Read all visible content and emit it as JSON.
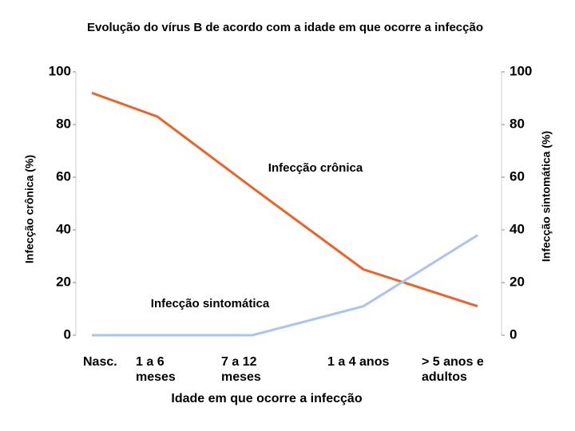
{
  "chart_data": {
    "type": "line",
    "title": "Evolução do vírus B de acordo com a idade em que ocorre a infecção",
    "xlabel": "Idade em que ocorre a infecção",
    "ylabel": "Infecção crônica (%)",
    "y2label": "Infecção sintomática (%)",
    "categories": [
      "Nasc.",
      "1 a 6 meses",
      "7 a 12 meses",
      "1 a 4 anos",
      "> 5 anos e adultos"
    ],
    "series": [
      {
        "name": "Infecção crônica",
        "color": "#e8642a",
        "values": [
          92,
          83,
          56,
          25,
          11
        ]
      },
      {
        "name": "Infecção sintomática",
        "color": "#a9c4f0",
        "axis": "y2",
        "values": [
          0,
          0,
          0,
          11,
          38
        ]
      }
    ],
    "ylim": [
      0,
      100
    ],
    "yticks": [
      0,
      20,
      40,
      60,
      80,
      100
    ],
    "y2lim": [
      0,
      100
    ],
    "y2ticks": [
      0,
      20,
      40,
      60,
      80,
      100
    ]
  }
}
